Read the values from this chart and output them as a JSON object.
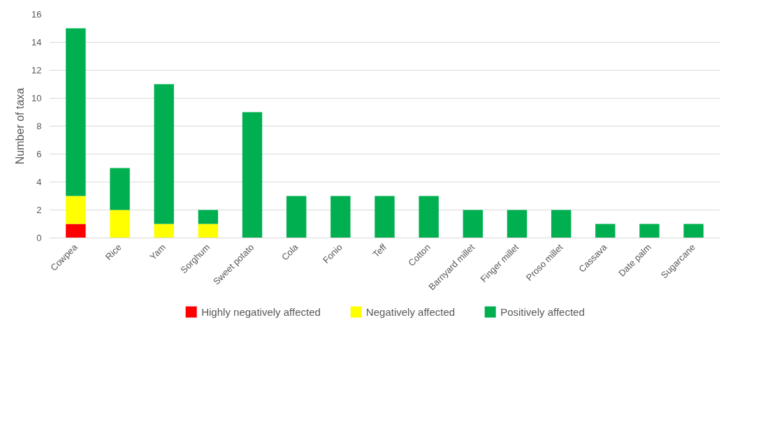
{
  "chart_data": {
    "type": "bar",
    "stacked": true,
    "ylabel": "Number of taxa",
    "categories": [
      "Cowpea",
      "Rice",
      "Yam",
      "Sorghum",
      "Sweet potato",
      "Cola",
      "Fonio",
      "Teff",
      "Cotton",
      "Barnyard millet",
      "Finger millet",
      "Proso millet",
      "Cassava",
      "Date palm",
      "Sugarcane"
    ],
    "series": [
      {
        "name": "Highly negatively affected",
        "color": "#ff0000",
        "values": [
          1,
          0,
          0,
          0,
          0,
          0,
          0,
          0,
          0,
          0,
          0,
          0,
          0,
          0,
          0
        ]
      },
      {
        "name": "Negatively affected",
        "color": "#ffff00",
        "values": [
          2,
          2,
          1,
          1,
          0,
          0,
          0,
          0,
          0,
          0,
          0,
          0,
          0,
          0,
          0
        ]
      },
      {
        "name": "Positively affected",
        "color": "#00b050",
        "values": [
          12,
          3,
          10,
          1,
          9,
          3,
          3,
          3,
          3,
          2,
          2,
          2,
          1,
          1,
          1
        ]
      }
    ],
    "ylim": [
      0,
      16
    ],
    "yticks": [
      0,
      2,
      4,
      6,
      8,
      10,
      12,
      14,
      16
    ],
    "grid": "y",
    "legend": "bottom"
  }
}
